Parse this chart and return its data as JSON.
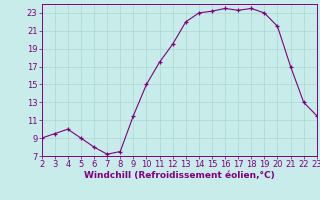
{
  "x": [
    2,
    3,
    4,
    5,
    6,
    7,
    8,
    9,
    10,
    11,
    12,
    13,
    14,
    15,
    16,
    17,
    18,
    19,
    20,
    21,
    22,
    23
  ],
  "y": [
    9,
    9.5,
    10,
    9,
    8,
    7.2,
    7.5,
    11.5,
    15,
    17.5,
    19.5,
    22,
    23,
    23.2,
    23.5,
    23.3,
    23.5,
    23,
    21.5,
    17,
    13,
    11.5
  ],
  "xlim": [
    2,
    23
  ],
  "ylim": [
    7,
    24
  ],
  "yticks": [
    7,
    9,
    11,
    13,
    15,
    17,
    19,
    21,
    23
  ],
  "xticks": [
    2,
    3,
    4,
    5,
    6,
    7,
    8,
    9,
    10,
    11,
    12,
    13,
    14,
    15,
    16,
    17,
    18,
    19,
    20,
    21,
    22,
    23
  ],
  "xlabel": "Windchill (Refroidissement éolien,°C)",
  "line_color": "#800080",
  "marker": "+",
  "bg_color": "#c8ecea",
  "grid_color": "#a8d8d4",
  "tick_color": "#800080",
  "label_color": "#800080",
  "xlabel_fontsize": 6.5,
  "tick_fontsize": 6.0
}
